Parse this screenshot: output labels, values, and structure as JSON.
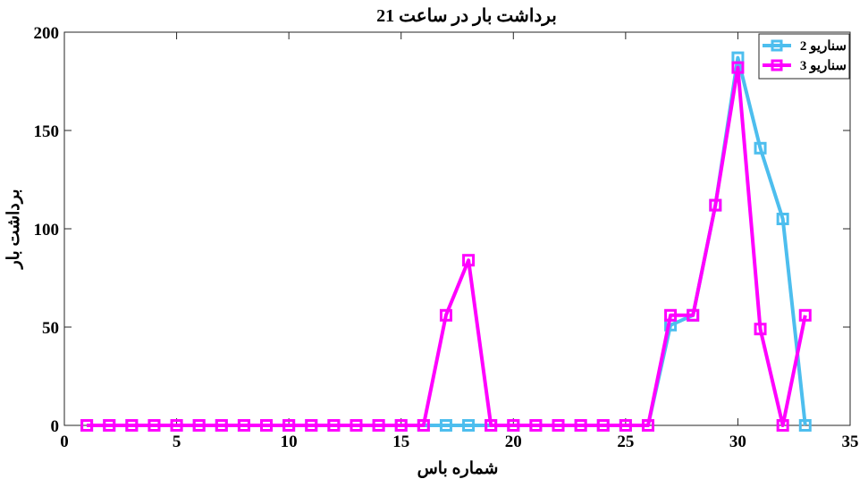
{
  "chart_data": {
    "type": "line",
    "title": "برداشت بار در ساعت 21",
    "xlabel": "شماره باس",
    "ylabel": "برداشت بار",
    "xlim": [
      0,
      35
    ],
    "ylim": [
      0,
      200
    ],
    "xticks": [
      0,
      5,
      10,
      15,
      20,
      25,
      30,
      35
    ],
    "yticks": [
      0,
      50,
      100,
      150,
      200
    ],
    "grid": false,
    "legend_position": "top-right",
    "x": [
      1,
      2,
      3,
      4,
      5,
      6,
      7,
      8,
      9,
      10,
      11,
      12,
      13,
      14,
      15,
      16,
      17,
      18,
      19,
      20,
      21,
      22,
      23,
      24,
      25,
      26,
      27,
      28,
      29,
      30,
      31,
      32,
      33
    ],
    "series": [
      {
        "name": "سناريو 2",
        "color": "#4DBEEE",
        "marker": "square",
        "values": [
          0,
          0,
          0,
          0,
          0,
          0,
          0,
          0,
          0,
          0,
          0,
          0,
          0,
          0,
          0,
          0,
          0,
          0,
          0,
          0,
          0,
          0,
          0,
          0,
          0,
          0,
          51,
          56,
          112,
          187,
          141,
          105,
          0
        ]
      },
      {
        "name": "سناريو 3",
        "color": "#FF00FF",
        "marker": "square",
        "values": [
          0,
          0,
          0,
          0,
          0,
          0,
          0,
          0,
          0,
          0,
          0,
          0,
          0,
          0,
          0,
          0,
          56,
          84,
          0,
          0,
          0,
          0,
          0,
          0,
          0,
          0,
          56,
          56,
          112,
          182,
          49,
          0,
          56
        ]
      }
    ]
  }
}
